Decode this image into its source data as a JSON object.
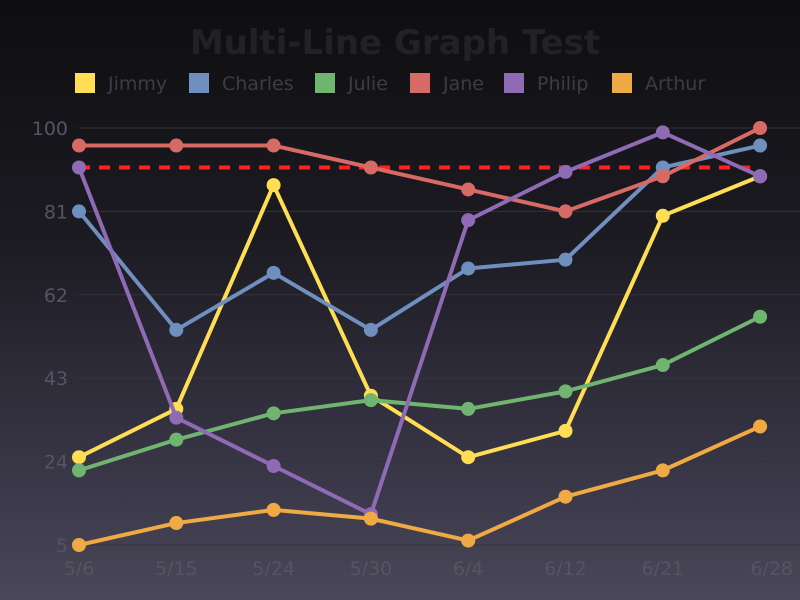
{
  "chart_data": {
    "type": "line",
    "title": "Multi-Line Graph Test",
    "categories": [
      "5/6",
      "5/15",
      "5/24",
      "5/30",
      "6/4",
      "6/12",
      "6/21",
      "6/28"
    ],
    "y_ticks": [
      5,
      24,
      43,
      62,
      81,
      100
    ],
    "ylim": [
      5,
      100
    ],
    "grid": true,
    "legend_position": "top",
    "reference_line": {
      "value": 91,
      "color": "#ff2222",
      "style": "dashed"
    },
    "series": [
      {
        "name": "Jimmy",
        "color": "#ffdd55",
        "values": [
          25,
          36,
          87,
          39,
          25,
          31,
          80,
          89
        ]
      },
      {
        "name": "Charles",
        "color": "#6f8fbf",
        "values": [
          81,
          54,
          67,
          54,
          68,
          70,
          91,
          96
        ]
      },
      {
        "name": "Julie",
        "color": "#6fb46f",
        "values": [
          22,
          29,
          35,
          38,
          36,
          40,
          46,
          57
        ]
      },
      {
        "name": "Jane",
        "color": "#d86a66",
        "values": [
          96,
          96,
          96,
          91,
          86,
          81,
          89,
          100
        ]
      },
      {
        "name": "Philip",
        "color": "#8f6bb5",
        "values": [
          91,
          34,
          23,
          12,
          79,
          90,
          99,
          89
        ]
      },
      {
        "name": "Arthur",
        "color": "#f0aa44",
        "values": [
          5,
          10,
          13,
          11,
          6,
          16,
          22,
          32
        ]
      }
    ]
  }
}
